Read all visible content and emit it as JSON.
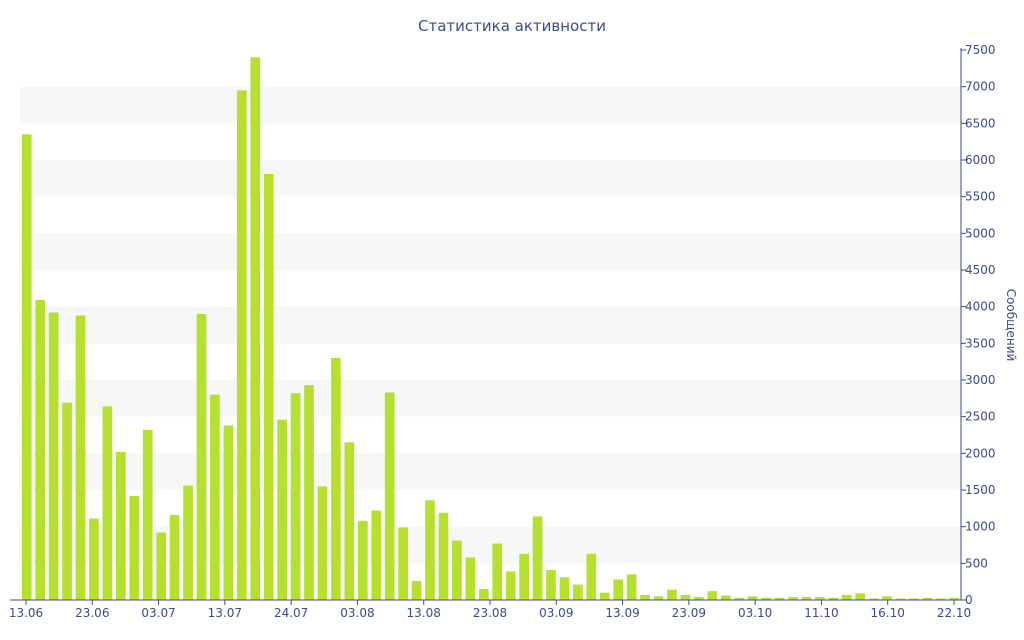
{
  "chart_data": {
    "type": "bar",
    "title": "Статистика активности",
    "xlabel": "",
    "ylabel": "Сообщений",
    "ylim": [
      0,
      7500
    ],
    "y_ticks": [
      0,
      500,
      1000,
      1500,
      2000,
      2500,
      3000,
      3500,
      4000,
      4500,
      5000,
      5500,
      6000,
      6500,
      7000,
      7500
    ],
    "x_tick_labels": [
      "13.06",
      "23.06",
      "03.07",
      "13.07",
      "24.07",
      "03.08",
      "13.08",
      "23.08",
      "03.09",
      "13.09",
      "23.09",
      "03.10",
      "11.10",
      "16.10",
      "22.10"
    ],
    "bar_color": "#b5e02e",
    "band_color": "#f7f7f7",
    "axis_color": "#3e4a8a",
    "y_axis_side": "right",
    "grid": "alternating horizontal bands",
    "values": [
      6350,
      4090,
      3920,
      2690,
      3880,
      1110,
      2640,
      2020,
      1420,
      2320,
      920,
      1160,
      1560,
      3900,
      2800,
      2380,
      6950,
      7400,
      5810,
      2460,
      2820,
      2930,
      1550,
      3300,
      2150,
      1080,
      1220,
      2830,
      990,
      260,
      1360,
      1190,
      810,
      580,
      150,
      770,
      390,
      630,
      1140,
      410,
      310,
      210,
      630,
      100,
      280,
      350,
      70,
      50,
      140,
      70,
      40,
      120,
      60,
      30,
      50,
      30,
      30,
      40,
      40,
      40,
      30,
      70,
      90,
      20,
      50,
      20,
      20,
      30,
      20,
      30
    ]
  }
}
